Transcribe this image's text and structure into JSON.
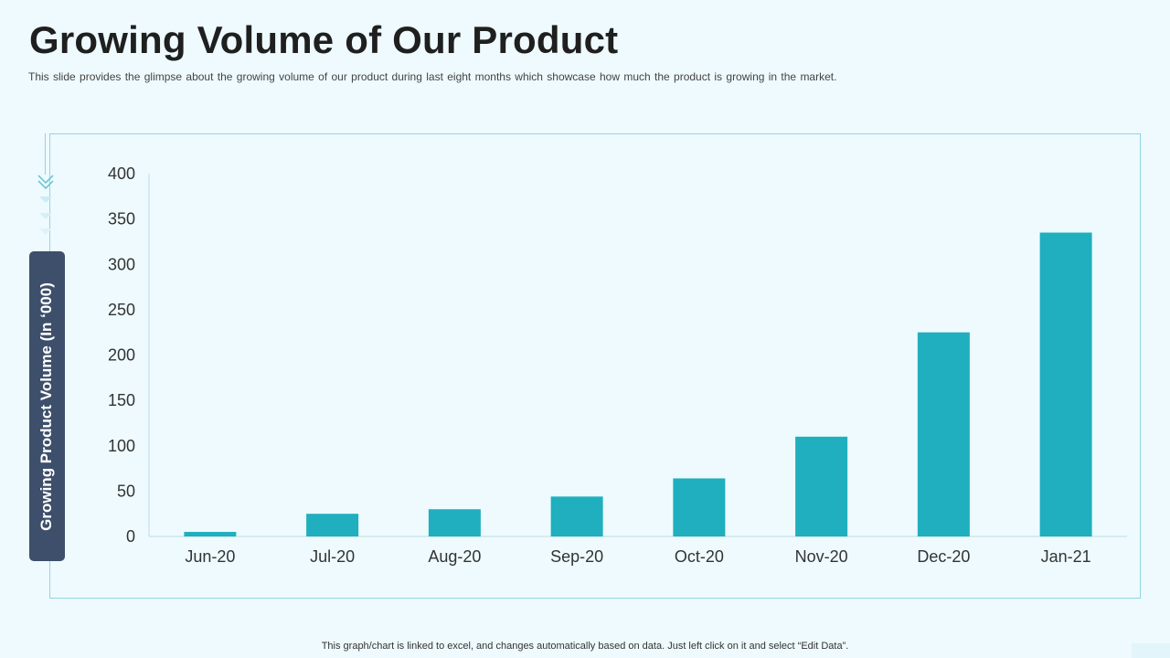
{
  "slide": {
    "title": "Growing Volume of Our Product",
    "subtitle": "This slide provides  the glimpse about the growing volume  of our product  during last eight months which showcase how much the product is growing  in the market.",
    "footer": "This graph/chart is linked to excel,  and changes automatically based on data. Just left click on it and select “Edit Data”."
  },
  "chart_data": {
    "type": "bar",
    "categories": [
      "Jun-20",
      "Jul-20",
      "Aug-20",
      "Sep-20",
      "Oct-20",
      "Nov-20",
      "Dec-20",
      "Jan-21"
    ],
    "values": [
      5,
      25,
      30,
      44,
      64,
      110,
      225,
      335
    ],
    "title": "",
    "xlabel": "",
    "ylabel": "Growing Product Volume (In ‘000)",
    "ylim": [
      0,
      400
    ],
    "yticks": [
      0,
      50,
      100,
      150,
      200,
      250,
      300,
      350,
      400
    ],
    "grid": false,
    "legend": "none",
    "colors": {
      "bar": "#1fafbf",
      "axis": "#b9dde4",
      "text": "#333333",
      "label_box": "#3d4f6b"
    }
  }
}
